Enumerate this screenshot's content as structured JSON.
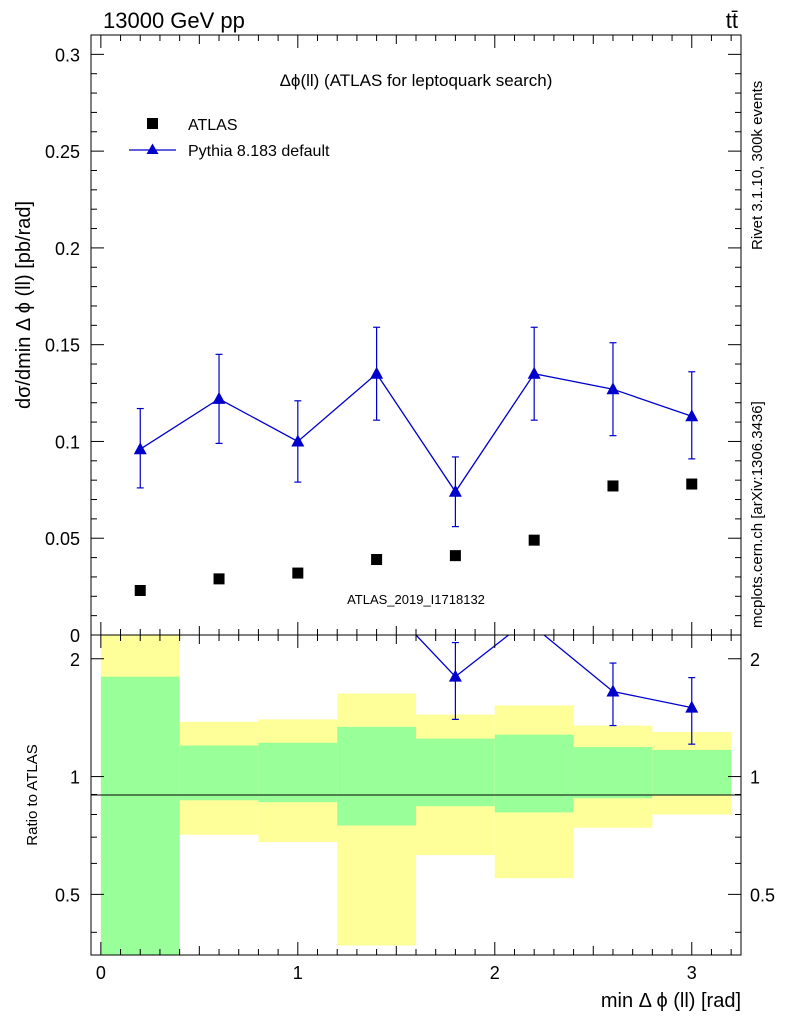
{
  "header": {
    "beam": "13000 GeV pp",
    "process": "tt̄"
  },
  "side": {
    "rivet": "Rivet 3.1.10,  300k events",
    "mcplots": "mcplots.cern.ch [arXiv:1306.3436]"
  },
  "chart_data": {
    "type": "scatter",
    "title": "Δϕ(ll) (ATLAS for leptoquark search)",
    "xlabel": "min Δ ϕ (ll) [rad]",
    "ylabel": "dσ/dmin Δ ϕ (ll) [pb/rad]",
    "ratio_ylabel": "Ratio to ATLAS",
    "analysis_id": "ATLAS_2019_I1718132",
    "xlim": [
      -0.05,
      3.25
    ],
    "ylim": [
      0,
      0.31
    ],
    "ratio_ylim": [
      0.35,
      2.3
    ],
    "x_ticks": [
      "0",
      "1",
      "2",
      "3"
    ],
    "y_ticks": [
      "0",
      "0.05",
      "0.1",
      "0.15",
      "0.2",
      "0.25",
      "0.3"
    ],
    "ratio_ticks": [
      "0.5",
      "1",
      "2"
    ],
    "legend": [
      {
        "name": "ATLAS",
        "marker": "square"
      },
      {
        "name": "Pythia 8.183 default",
        "marker": "triangle"
      }
    ],
    "bins": [
      0,
      0.4,
      0.8,
      1.2,
      1.6,
      2.0,
      2.4,
      2.8,
      3.2
    ],
    "series": [
      {
        "name": "ATLAS",
        "color": "#000000",
        "x": [
          0.2,
          0.6,
          1.0,
          1.4,
          1.8,
          2.2,
          2.6,
          3.0
        ],
        "y": [
          0.023,
          0.029,
          0.032,
          0.039,
          0.041,
          0.049,
          0.077,
          0.078
        ]
      },
      {
        "name": "Pythia 8.183 default",
        "color": "#0000cc",
        "x": [
          0.2,
          0.6,
          1.0,
          1.4,
          1.8,
          2.2,
          2.6,
          3.0
        ],
        "y": [
          0.096,
          0.122,
          0.1,
          0.135,
          0.074,
          0.135,
          0.127,
          0.113
        ],
        "err_low": [
          0.02,
          0.023,
          0.021,
          0.024,
          0.018,
          0.024,
          0.024,
          0.022
        ],
        "err_high": [
          0.021,
          0.023,
          0.021,
          0.024,
          0.018,
          0.024,
          0.024,
          0.023
        ]
      }
    ],
    "ratio": {
      "x": [
        1.8,
        2.6,
        3.0
      ],
      "y": [
        1.8,
        1.65,
        1.5
      ],
      "err_low": [
        0.4,
        0.3,
        0.29
      ],
      "err_high": [
        0.4,
        0.3,
        0.29
      ],
      "line_segments": [
        [
          1.6,
          2.3,
          1.8,
          1.8
        ],
        [
          1.8,
          1.8,
          2.07,
          2.3
        ],
        [
          2.25,
          2.3,
          2.6,
          1.65
        ],
        [
          2.6,
          1.65,
          3.0,
          1.5
        ]
      ]
    },
    "bands": {
      "green_low": [
        0.35,
        0.87,
        0.86,
        0.75,
        0.84,
        0.81,
        0.88,
        0.9
      ],
      "green_high": [
        1.8,
        1.2,
        1.22,
        1.34,
        1.25,
        1.28,
        1.19,
        1.17
      ],
      "yellow_low": [
        0.35,
        0.71,
        0.68,
        0.37,
        0.63,
        0.55,
        0.74,
        0.8
      ],
      "yellow_high": [
        2.3,
        1.38,
        1.4,
        1.63,
        1.44,
        1.52,
        1.35,
        1.3
      ]
    }
  }
}
